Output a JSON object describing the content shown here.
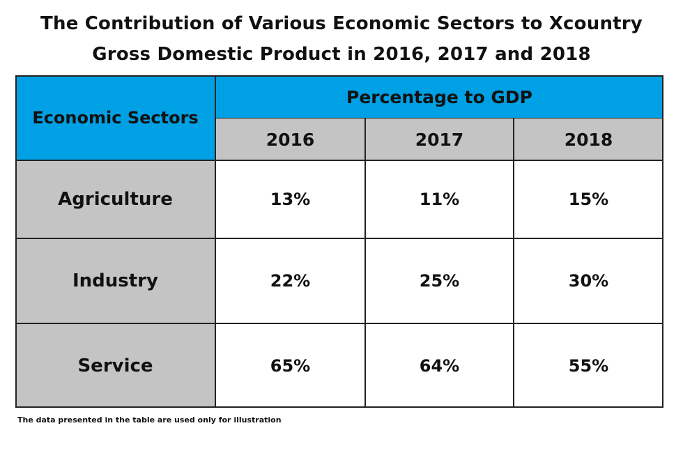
{
  "title": {
    "line1": "The Contribution of Various Economic Sectors to Xcountry",
    "line2": "Gross Domestic Product in 2016, 2017 and 2018"
  },
  "colors": {
    "header_blue": "#00a0e4",
    "header_gray": "#c4c4c4",
    "row_label_gray": "#c4c4c4"
  },
  "chart_data": {
    "type": "table",
    "title": "The Contribution of Various Economic Sectors to Xcountry Gross Domestic Product in 2016, 2017 and 2018",
    "row_header": "Economic Sectors",
    "group_header": "Percentage to GDP",
    "columns": [
      "2016",
      "2017",
      "2018"
    ],
    "rows": [
      {
        "label": "Agriculture",
        "values": [
          "13%",
          "11%",
          "15%"
        ]
      },
      {
        "label": "Industry",
        "values": [
          "22%",
          "25%",
          "30%"
        ]
      },
      {
        "label": "Service",
        "values": [
          "65%",
          "64%",
          "55%"
        ]
      }
    ]
  },
  "footnote": "The data presented in the table are used only for illustration"
}
